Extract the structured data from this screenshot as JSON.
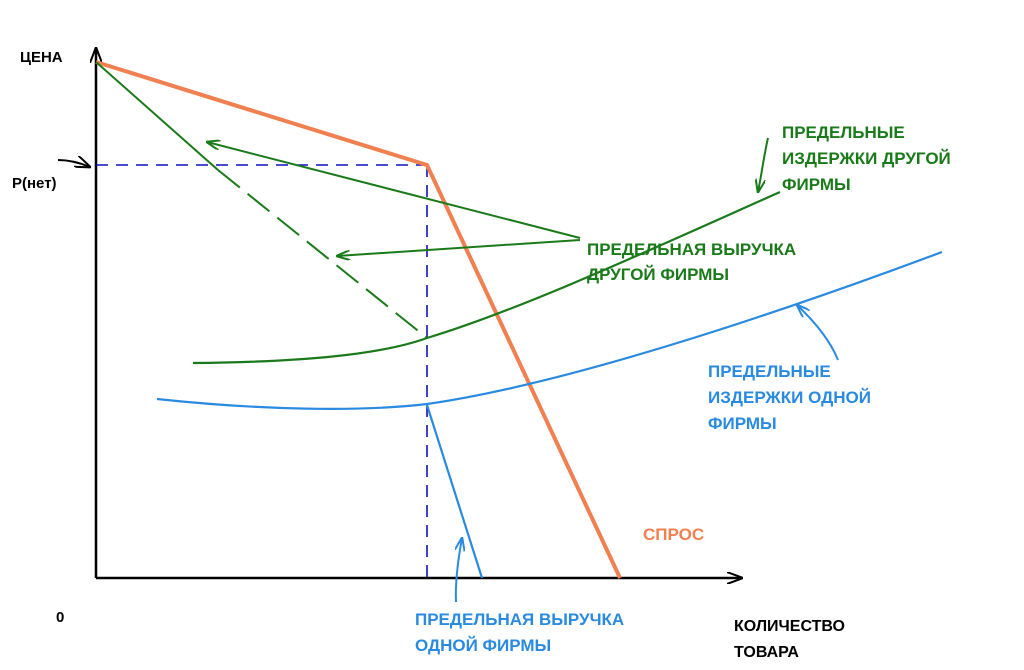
{
  "axes": {
    "y_label": "ЦЕНА",
    "x_label_line1": "КОЛИЧЕСТВО",
    "x_label_line2": "ТОВАРА",
    "origin": "0",
    "price_marker": "P(нет)"
  },
  "labels": {
    "demand": "СПРОС",
    "mc_other_1": "ПРЕДЕЛЬНЫЕ",
    "mc_other_2": "ИЗДЕРЖКИ ДРУГОЙ",
    "mc_other_3": "ФИРМЫ",
    "mr_other_1": "ПРЕДЕЛЬНАЯ ВЫРУЧКА",
    "mr_other_2": "ДРУГОЙ ФИРМЫ",
    "mc_one_1": "ПРЕДЕЛЬНЫЕ",
    "mc_one_2": "ИЗДЕРЖКИ ОДНОЙ",
    "mc_one_3": "ФИРМЫ",
    "mr_one_1": "ПРЕДЕЛЬНАЯ ВЫРУЧКА",
    "mr_one_2": "ОДНОЙ ФИРМЫ"
  },
  "colors": {
    "axis": "#000000",
    "demand": "#f08050",
    "other_firm": "#1a7a1a",
    "one_firm": "#2a8ae0",
    "guide": "#1010c0"
  }
}
